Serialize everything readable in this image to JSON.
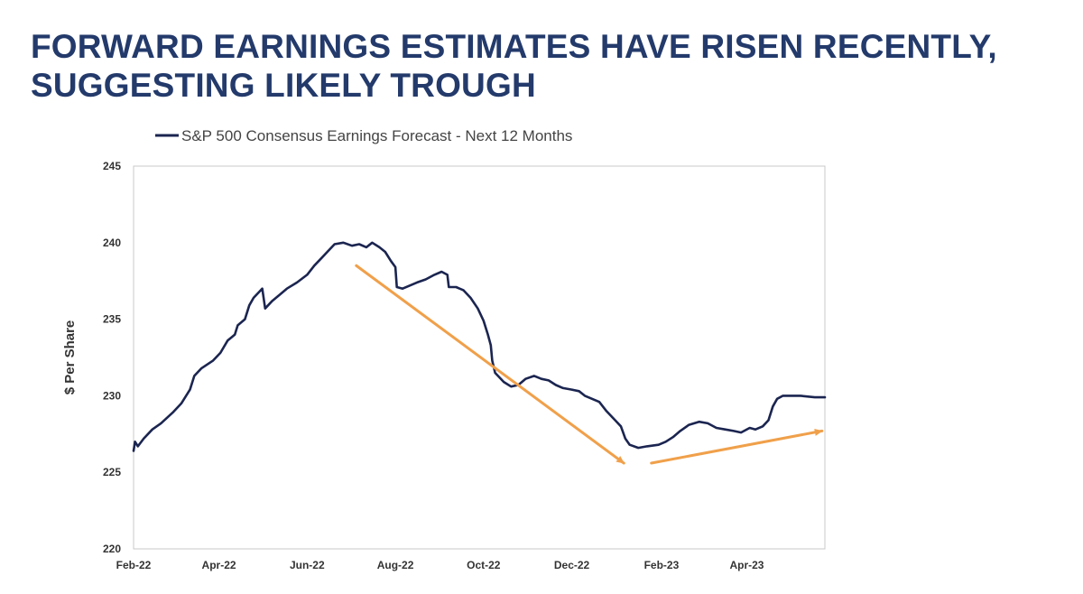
{
  "slide": {
    "title_line1": "FORWARD EARNINGS ESTIMATES HAVE RISEN RECENTLY,",
    "title_line2": "SUGGESTING LIKELY TROUGH",
    "title_color": "#233a6b"
  },
  "chart_data": {
    "type": "line",
    "title": "",
    "xlabel": "",
    "ylabel": "$ Per Share",
    "ylim": [
      220,
      245
    ],
    "yticks": [
      220,
      225,
      230,
      235,
      240,
      245
    ],
    "xlim": [
      "2022-02-01",
      "2023-05-25"
    ],
    "xticks": [
      {
        "date": "2022-02-01",
        "label": "Feb-22"
      },
      {
        "date": "2022-04-01",
        "label": "Apr-22"
      },
      {
        "date": "2022-06-01",
        "label": "Jun-22"
      },
      {
        "date": "2022-08-01",
        "label": "Aug-22"
      },
      {
        "date": "2022-10-01",
        "label": "Oct-22"
      },
      {
        "date": "2022-12-01",
        "label": "Dec-22"
      },
      {
        "date": "2023-02-01",
        "label": "Feb-23"
      },
      {
        "date": "2023-04-01",
        "label": "Apr-23"
      }
    ],
    "grid": false,
    "legend_position": "top",
    "series": [
      {
        "name": "S&P 500 Consensus Earnings Forecast - Next 12 Months",
        "color": "#1b2550",
        "points": [
          [
            "2022-02-01",
            226.4
          ],
          [
            "2022-02-02",
            227.0
          ],
          [
            "2022-02-04",
            226.7
          ],
          [
            "2022-02-08",
            227.2
          ],
          [
            "2022-02-14",
            227.8
          ],
          [
            "2022-02-20",
            228.2
          ],
          [
            "2022-02-28",
            228.9
          ],
          [
            "2022-03-06",
            229.5
          ],
          [
            "2022-03-12",
            230.4
          ],
          [
            "2022-03-15",
            231.3
          ],
          [
            "2022-03-20",
            231.8
          ],
          [
            "2022-03-28",
            232.3
          ],
          [
            "2022-04-02",
            232.8
          ],
          [
            "2022-04-07",
            233.6
          ],
          [
            "2022-04-12",
            234.0
          ],
          [
            "2022-04-14",
            234.6
          ],
          [
            "2022-04-19",
            235.0
          ],
          [
            "2022-04-22",
            235.9
          ],
          [
            "2022-04-25",
            236.4
          ],
          [
            "2022-04-29",
            236.8
          ],
          [
            "2022-05-01",
            237.0
          ],
          [
            "2022-05-03",
            235.7
          ],
          [
            "2022-05-08",
            236.2
          ],
          [
            "2022-05-13",
            236.6
          ],
          [
            "2022-05-18",
            237.0
          ],
          [
            "2022-05-25",
            237.4
          ],
          [
            "2022-06-01",
            237.9
          ],
          [
            "2022-06-06",
            238.5
          ],
          [
            "2022-06-11",
            239.0
          ],
          [
            "2022-06-15",
            239.4
          ],
          [
            "2022-06-20",
            239.9
          ],
          [
            "2022-06-26",
            240.0
          ],
          [
            "2022-07-02",
            239.8
          ],
          [
            "2022-07-07",
            239.9
          ],
          [
            "2022-07-12",
            239.7
          ],
          [
            "2022-07-16",
            240.0
          ],
          [
            "2022-07-21",
            239.7
          ],
          [
            "2022-07-25",
            239.4
          ],
          [
            "2022-07-29",
            238.8
          ],
          [
            "2022-08-01",
            238.4
          ],
          [
            "2022-08-02",
            237.1
          ],
          [
            "2022-08-06",
            237.0
          ],
          [
            "2022-08-11",
            237.2
          ],
          [
            "2022-08-16",
            237.4
          ],
          [
            "2022-08-22",
            237.6
          ],
          [
            "2022-08-28",
            237.9
          ],
          [
            "2022-09-02",
            238.1
          ],
          [
            "2022-09-06",
            237.9
          ],
          [
            "2022-09-07",
            237.1
          ],
          [
            "2022-09-12",
            237.1
          ],
          [
            "2022-09-17",
            236.9
          ],
          [
            "2022-09-22",
            236.4
          ],
          [
            "2022-09-27",
            235.7
          ],
          [
            "2022-10-01",
            234.9
          ],
          [
            "2022-10-04",
            234.0
          ],
          [
            "2022-10-06",
            233.3
          ],
          [
            "2022-10-07",
            232.3
          ],
          [
            "2022-10-09",
            231.5
          ],
          [
            "2022-10-15",
            230.9
          ],
          [
            "2022-10-20",
            230.6
          ],
          [
            "2022-10-25",
            230.7
          ],
          [
            "2022-10-30",
            231.1
          ],
          [
            "2022-11-05",
            231.3
          ],
          [
            "2022-11-10",
            231.1
          ],
          [
            "2022-11-15",
            231.0
          ],
          [
            "2022-11-20",
            230.7
          ],
          [
            "2022-11-25",
            230.5
          ],
          [
            "2022-12-01",
            230.4
          ],
          [
            "2022-12-06",
            230.3
          ],
          [
            "2022-12-10",
            230.0
          ],
          [
            "2022-12-15",
            229.8
          ],
          [
            "2022-12-20",
            229.6
          ],
          [
            "2022-12-25",
            229.0
          ],
          [
            "2022-12-31",
            228.4
          ],
          [
            "2023-01-04",
            228.0
          ],
          [
            "2023-01-07",
            227.2
          ],
          [
            "2023-01-10",
            226.8
          ],
          [
            "2023-01-16",
            226.6
          ],
          [
            "2023-01-22",
            226.7
          ],
          [
            "2023-01-30",
            226.8
          ],
          [
            "2023-02-04",
            227.0
          ],
          [
            "2023-02-09",
            227.3
          ],
          [
            "2023-02-14",
            227.7
          ],
          [
            "2023-02-20",
            228.1
          ],
          [
            "2023-02-27",
            228.3
          ],
          [
            "2023-03-05",
            228.2
          ],
          [
            "2023-03-11",
            227.9
          ],
          [
            "2023-03-17",
            227.8
          ],
          [
            "2023-03-23",
            227.7
          ],
          [
            "2023-03-28",
            227.6
          ],
          [
            "2023-04-03",
            227.9
          ],
          [
            "2023-04-07",
            227.8
          ],
          [
            "2023-04-12",
            228.0
          ],
          [
            "2023-04-16",
            228.4
          ],
          [
            "2023-04-19",
            229.3
          ],
          [
            "2023-04-22",
            229.8
          ],
          [
            "2023-04-26",
            230.0
          ],
          [
            "2023-05-01",
            230.0
          ],
          [
            "2023-05-08",
            230.0
          ],
          [
            "2023-05-18",
            229.9
          ],
          [
            "2023-05-25",
            229.9
          ]
        ]
      }
    ],
    "annotations": [
      {
        "type": "arrow",
        "color": "#f0a04a",
        "from": [
          "2022-07-05",
          238.5
        ],
        "to": [
          "2023-01-06",
          225.6
        ]
      },
      {
        "type": "arrow",
        "color": "#f0a04a",
        "from": [
          "2023-01-25",
          225.6
        ],
        "to": [
          "2023-05-23",
          227.7
        ]
      }
    ]
  }
}
